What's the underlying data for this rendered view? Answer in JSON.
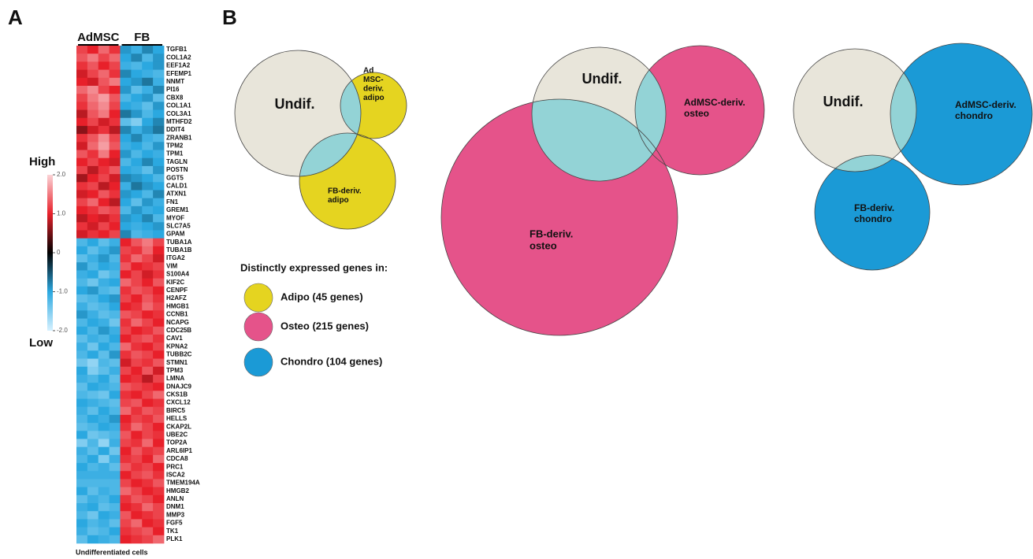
{
  "panels": {
    "a": "A",
    "b": "B"
  },
  "heatmap": {
    "groups": [
      "AdMSC",
      "FB"
    ],
    "scale_high": "High",
    "scale_low": "Low",
    "clim": [
      -2,
      2
    ],
    "scale_ticks": [
      {
        "value": 2,
        "label": "2.0"
      },
      {
        "value": 1,
        "label": "1.0"
      },
      0,
      {
        "value": -1,
        "label": "-1.0"
      },
      {
        "value": -2,
        "label": "-2.0"
      }
    ],
    "colors": [
      "#d6f1ff",
      "#2ba8e0",
      "#000000",
      "#e8202a",
      "#fbd3d6"
    ],
    "footer": "Undifferentiated cells",
    "genes": [
      "TGFB1",
      "COL1A2",
      "EEF1A2",
      "EFEMP1",
      "NNMT",
      "PI16",
      "CBX8",
      "COL1A1",
      "COL3A1",
      "MTHFD2",
      "DDIT4",
      "ZRANB1",
      "TPM2",
      "TPM1",
      "TAGLN",
      "POSTN",
      "GGT5",
      "CALD1",
      "ATXN1",
      "FN1",
      "GREM1",
      "MYOF",
      "SLC7A5",
      "GPAM",
      "TUBA1A",
      "TUBA1B",
      "ITGA2",
      "VIM",
      "S100A4",
      "KIF2C",
      "CENPF",
      "H2AFZ",
      "HMGB1",
      "CCNB1",
      "NCAPG",
      "CDC25B",
      "CAV1",
      "KPNA2",
      "TUBB2C",
      "STMN1",
      "TPM3",
      "LMNA",
      "DNAJC9",
      "CKS1B",
      "CXCL12",
      "BIRC5",
      "HELLS",
      "CKAP2L",
      "UBE2C",
      "TOP2A",
      "ARL6IP1",
      "CDCA8",
      "PRC1",
      "ISCA2",
      "TMEM194A",
      "HMGB2",
      "ANLN",
      "DNM1",
      "MMP3",
      "FGF5",
      "TK1",
      "PLK1"
    ],
    "values": [
      [
        1.2,
        1.0,
        1.4,
        1.1,
        -0.9,
        -1.1,
        -0.8,
        -1.0
      ],
      [
        1.3,
        1.5,
        1.2,
        1.4,
        -1.0,
        -0.8,
        -1.2,
        -0.9
      ],
      [
        1.1,
        1.3,
        1.0,
        1.2,
        -1.1,
        -1.2,
        -1.0,
        -0.9
      ],
      [
        0.9,
        1.2,
        1.4,
        1.1,
        -0.8,
        -1.0,
        -1.1,
        -1.2
      ],
      [
        1.0,
        0.9,
        1.3,
        1.5,
        -1.0,
        -0.9,
        -0.7,
        -1.1
      ],
      [
        1.4,
        1.6,
        1.2,
        1.0,
        -0.9,
        -1.3,
        -1.1,
        -0.8
      ],
      [
        1.2,
        1.5,
        1.7,
        1.3,
        -1.2,
        -1.0,
        -0.9,
        -1.3
      ],
      [
        1.1,
        1.4,
        1.6,
        1.2,
        -1.0,
        -1.1,
        -1.3,
        -0.9
      ],
      [
        0.8,
        1.3,
        1.5,
        1.0,
        -0.7,
        -0.9,
        -1.2,
        -1.0
      ],
      [
        1.0,
        1.2,
        0.9,
        1.1,
        -1.3,
        -1.5,
        -1.0,
        -0.8
      ],
      [
        0.6,
        0.9,
        1.1,
        0.8,
        -0.8,
        -1.1,
        -0.9,
        -0.7
      ],
      [
        1.1,
        1.3,
        1.6,
        1.2,
        -1.0,
        -0.8,
        -1.1,
        -1.2
      ],
      [
        0.9,
        1.4,
        1.7,
        1.3,
        -1.1,
        -1.0,
        -1.2,
        -0.9
      ],
      [
        1.3,
        1.1,
        1.5,
        1.0,
        -0.9,
        -1.2,
        -1.0,
        -1.1
      ],
      [
        1.0,
        1.2,
        1.0,
        0.9,
        -1.2,
        -1.0,
        -0.8,
        -1.0
      ],
      [
        1.2,
        0.8,
        1.1,
        1.3,
        -1.0,
        -1.1,
        -1.3,
        -0.9
      ],
      [
        0.7,
        1.0,
        1.2,
        0.9,
        -0.8,
        -0.9,
        -1.0,
        -1.2
      ],
      [
        1.1,
        1.2,
        0.8,
        1.0,
        -1.1,
        -0.7,
        -0.9,
        -1.0
      ],
      [
        0.9,
        1.0,
        1.3,
        1.1,
        -0.9,
        -1.0,
        -1.2,
        -0.8
      ],
      [
        1.2,
        1.4,
        1.0,
        0.8,
        -1.0,
        -1.3,
        -0.9,
        -1.1
      ],
      [
        1.0,
        1.1,
        1.3,
        1.2,
        -1.2,
        -0.9,
        -1.1,
        -1.0
      ],
      [
        0.8,
        1.0,
        0.9,
        1.1,
        -0.9,
        -1.0,
        -0.8,
        -1.2
      ],
      [
        1.1,
        0.9,
        1.2,
        1.0,
        -1.0,
        -1.1,
        -1.0,
        -0.9
      ],
      [
        0.9,
        1.1,
        1.0,
        1.2,
        -0.8,
        -1.2,
        -1.1,
        -1.0
      ],
      [
        -1.2,
        -1.0,
        -1.3,
        -1.1,
        1.0,
        1.3,
        1.5,
        1.2
      ],
      [
        -1.0,
        -1.3,
        -1.1,
        -0.9,
        1.2,
        1.1,
        1.4,
        1.0
      ],
      [
        -1.3,
        -1.1,
        -0.9,
        -1.2,
        1.1,
        1.4,
        1.2,
        0.9
      ],
      [
        -0.9,
        -1.2,
        -1.0,
        -1.1,
        1.3,
        1.0,
        1.1,
        1.2
      ],
      [
        -1.1,
        -1.0,
        -1.4,
        -1.2,
        1.0,
        1.2,
        0.9,
        1.1
      ],
      [
        -1.2,
        -1.4,
        -1.1,
        -1.0,
        1.4,
        1.2,
        1.0,
        1.3
      ],
      [
        -1.0,
        -0.9,
        -1.2,
        -1.3,
        1.1,
        1.3,
        1.2,
        1.0
      ],
      [
        -1.3,
        -1.2,
        -1.0,
        -0.9,
        1.2,
        1.0,
        1.3,
        1.1
      ],
      [
        -1.1,
        -1.3,
        -1.2,
        -1.0,
        1.0,
        1.1,
        1.4,
        1.2
      ],
      [
        -0.9,
        -1.1,
        -1.3,
        -1.2,
        1.3,
        1.2,
        1.0,
        1.1
      ],
      [
        -1.2,
        -1.0,
        -1.1,
        -1.4,
        1.1,
        1.4,
        1.2,
        1.0
      ],
      [
        -1.0,
        -1.2,
        -0.9,
        -1.1,
        1.2,
        1.0,
        1.1,
        1.3
      ],
      [
        -1.3,
        -1.1,
        -1.2,
        -1.0,
        1.0,
        1.2,
        1.3,
        1.1
      ],
      [
        -1.1,
        -1.4,
        -1.0,
        -1.2,
        1.4,
        1.1,
        1.0,
        1.2
      ],
      [
        -1.2,
        -1.0,
        -1.3,
        -0.9,
        1.1,
        1.3,
        1.2,
        1.0
      ],
      [
        -1.4,
        -1.6,
        -1.2,
        -1.3,
        0.9,
        1.2,
        1.1,
        1.3
      ],
      [
        -1.0,
        -1.5,
        -1.3,
        -1.1,
        1.2,
        1.0,
        1.3,
        0.9
      ],
      [
        -1.1,
        -1.2,
        -1.0,
        -1.3,
        1.0,
        1.1,
        0.8,
        1.2
      ],
      [
        -1.3,
        -1.0,
        -1.1,
        -1.2,
        1.3,
        1.2,
        1.1,
        1.0
      ],
      [
        -1.2,
        -1.3,
        -1.4,
        -1.0,
        1.1,
        1.0,
        1.2,
        1.4
      ],
      [
        -1.0,
        -1.1,
        -1.2,
        -1.3,
        1.2,
        1.3,
        1.0,
        1.1
      ],
      [
        -1.1,
        -1.3,
        -1.0,
        -1.2,
        1.4,
        1.1,
        1.3,
        1.2
      ],
      [
        -1.2,
        -1.0,
        -1.1,
        -0.9,
        1.0,
        1.2,
        1.1,
        1.3
      ],
      [
        -1.3,
        -1.2,
        -1.0,
        -1.1,
        1.1,
        1.4,
        1.2,
        1.0
      ],
      [
        -1.0,
        -1.4,
        -1.3,
        -1.2,
        1.3,
        1.0,
        1.2,
        1.1
      ],
      [
        -1.5,
        -1.2,
        -1.6,
        -1.1,
        1.2,
        1.1,
        1.4,
        1.0
      ],
      [
        -1.1,
        -1.3,
        -1.0,
        -1.4,
        1.0,
        1.3,
        1.1,
        1.2
      ],
      [
        -1.2,
        -1.0,
        -1.5,
        -1.1,
        1.1,
        1.2,
        1.0,
        1.4
      ],
      [
        -1.0,
        -1.2,
        -1.1,
        -1.3,
        1.3,
        1.1,
        1.2,
        1.0
      ],
      [
        -1.1,
        -1.1,
        -1.1,
        -1.1,
        1.0,
        1.2,
        1.3,
        1.1
      ],
      [
        -1.2,
        -1.2,
        -1.2,
        -1.2,
        1.2,
        1.0,
        1.1,
        1.3
      ],
      [
        -1.0,
        -1.3,
        -1.1,
        -1.2,
        1.4,
        1.2,
        1.0,
        1.1
      ],
      [
        -1.3,
        -1.1,
        -1.2,
        -1.0,
        1.1,
        1.3,
        1.2,
        1.0
      ],
      [
        -1.1,
        -1.0,
        -1.3,
        -1.2,
        1.0,
        1.1,
        1.4,
        1.2
      ],
      [
        -1.2,
        -1.4,
        -1.0,
        -1.1,
        1.3,
        1.0,
        1.1,
        1.2
      ],
      [
        -1.0,
        -1.2,
        -1.1,
        -1.3,
        1.2,
        1.4,
        1.0,
        1.1
      ],
      [
        -1.1,
        -1.3,
        -1.2,
        -1.0,
        1.1,
        1.2,
        1.3,
        1.0
      ],
      [
        -1.3,
        -1.0,
        -1.1,
        -1.2,
        1.0,
        1.1,
        1.2,
        1.4
      ]
    ]
  },
  "venn": [
    {
      "color": "#e5d420",
      "undif_color": "#e8e5da",
      "overlap_color": "#93d3d6",
      "sets": [
        {
          "lines": [
            "Undif."
          ]
        },
        {
          "lines": [
            "Ad",
            "MSC-",
            "deriv.",
            "adipo"
          ]
        },
        {
          "lines": [
            "FB-deriv.",
            "adipo"
          ]
        }
      ]
    },
    {
      "color": "#e5538a",
      "undif_color": "#e8e5da",
      "overlap_color": "#93d3d6",
      "sets": [
        {
          "lines": [
            "Undif."
          ]
        },
        {
          "lines": [
            "AdMSC-deriv.",
            "osteo"
          ]
        },
        {
          "lines": [
            "FB-deriv.",
            "osteo"
          ]
        }
      ]
    },
    {
      "color": "#1b9ad6",
      "undif_color": "#e8e5da",
      "overlap_color": "#93d3d6",
      "sets": [
        {
          "lines": [
            "Undif."
          ]
        },
        {
          "lines": [
            "AdMSC-deriv.",
            "chondro"
          ]
        },
        {
          "lines": [
            "FB-deriv.",
            "chondro"
          ]
        }
      ]
    }
  ],
  "legend": {
    "title": "Distinctly expressed genes in:",
    "items": [
      {
        "label": "Adipo (45 genes)",
        "color": "#e5d420"
      },
      {
        "label": "Osteo (215 genes)",
        "color": "#e5538a"
      },
      {
        "label": "Chondro (104 genes)",
        "color": "#1b9ad6"
      }
    ]
  }
}
